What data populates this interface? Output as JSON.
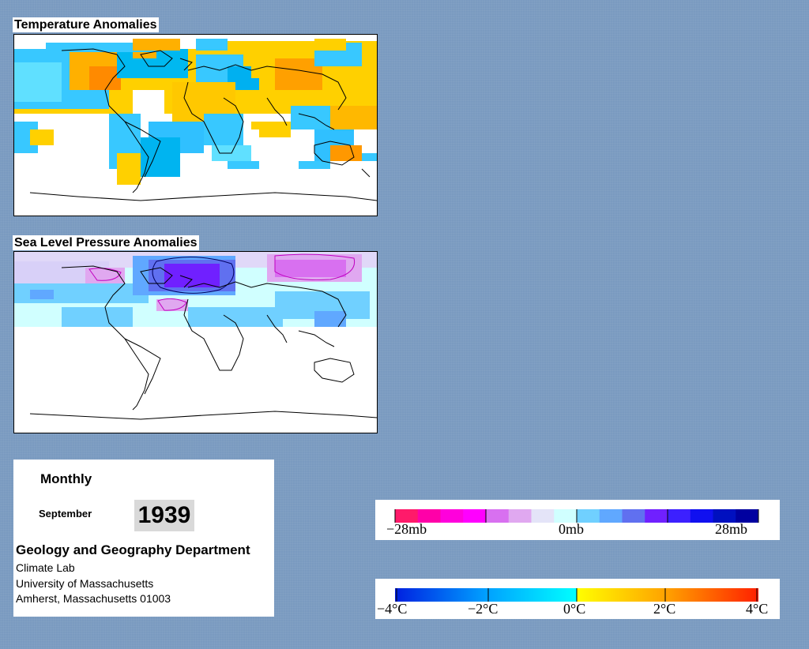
{
  "maps": {
    "temperature": {
      "title": "Temperature Anomalies"
    },
    "pressure": {
      "title": "Sea Level Pressure Anomalies"
    }
  },
  "info": {
    "period_type": "Monthly",
    "month": "September",
    "year": "1939",
    "department": "Geology and Geography Department",
    "address_lines": [
      "Climate Lab",
      "University of Massachusetts",
      "Amherst, Massachusetts 01003"
    ]
  },
  "pressure_legend": {
    "labels": [
      "−28mb",
      "0mb",
      "28mb"
    ],
    "colors": [
      "#ff1a6a",
      "#ff00a8",
      "#ff00dc",
      "#ff00ff",
      "#d870f0",
      "#e0a8f0",
      "#e4e4f8",
      "#d0ffff",
      "#70d0ff",
      "#60a8ff",
      "#6070f0",
      "#7020ff",
      "#3c20ff",
      "#1010f0",
      "#0010c0",
      "#0000a0"
    ],
    "range_mb": [
      -28,
      28
    ]
  },
  "temperature_legend": {
    "labels": [
      "−4°C",
      "−2°C",
      "0°C",
      "2°C",
      "4°C"
    ],
    "range_c": [
      -4,
      4
    ],
    "cold_colors": [
      "#0020e0",
      "#00a0ff",
      "#00ffff"
    ],
    "warm_colors": [
      "#ffff00",
      "#ffa000",
      "#ff2000"
    ]
  }
}
